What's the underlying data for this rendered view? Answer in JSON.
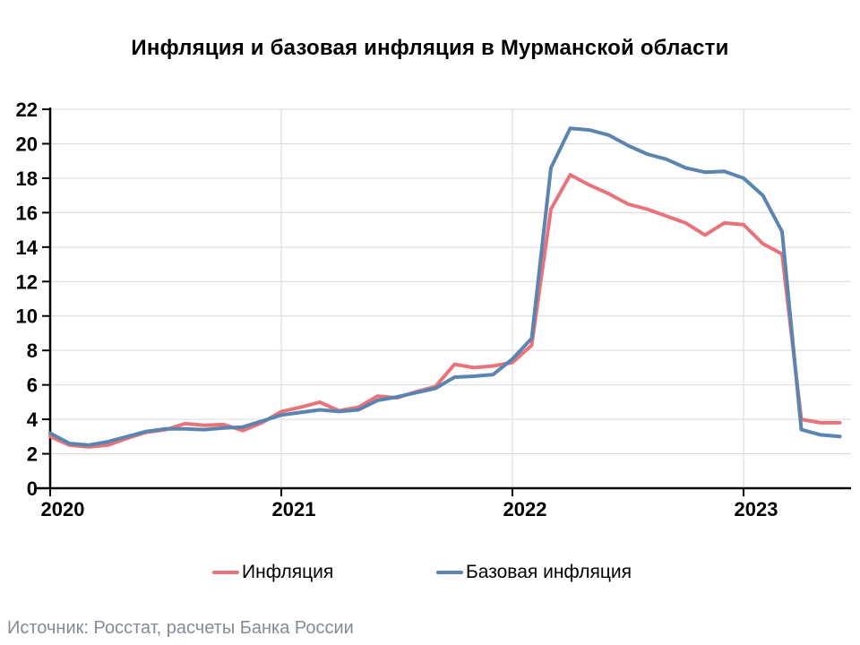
{
  "title": "Инфляция и базовая инфляция в Мурманской области",
  "source": "Источник: Росстат, расчеты Банка России",
  "legend": [
    {
      "label": "Инфляция",
      "color": "#E8737B"
    },
    {
      "label": "Базовая инфляция",
      "color": "#5B84AF"
    }
  ],
  "colors": {
    "inflation_line": "#E8737B",
    "core_inflation_line": "#5B84AF",
    "gridline": "#D9D9D9",
    "axis": "#000000",
    "source_text": "#858b94"
  },
  "chart_data": {
    "type": "line",
    "title": "Инфляция и базовая инфляция в Мурманской области",
    "xlabel": "",
    "ylabel": "",
    "ylim": [
      0,
      22
    ],
    "y_ticks": [
      0,
      2,
      4,
      6,
      8,
      10,
      12,
      14,
      16,
      18,
      20,
      22
    ],
    "x_tick_labels": [
      "2020",
      "2021",
      "2022",
      "2023"
    ],
    "grid": true,
    "legend_position": "bottom",
    "x": [
      "2020-01",
      "2020-02",
      "2020-03",
      "2020-04",
      "2020-05",
      "2020-06",
      "2020-07",
      "2020-08",
      "2020-09",
      "2020-10",
      "2020-11",
      "2020-12",
      "2021-01",
      "2021-02",
      "2021-03",
      "2021-04",
      "2021-05",
      "2021-06",
      "2021-07",
      "2021-08",
      "2021-09",
      "2021-10",
      "2021-11",
      "2021-12",
      "2022-01",
      "2022-02",
      "2022-03",
      "2022-04",
      "2022-05",
      "2022-06",
      "2022-07",
      "2022-08",
      "2022-09",
      "2022-10",
      "2022-11",
      "2022-12",
      "2023-01",
      "2023-02",
      "2023-03",
      "2023-04",
      "2023-05",
      "2023-06"
    ],
    "series": [
      {
        "name": "Инфляция",
        "color": "#E8737B",
        "values": [
          3.0,
          2.5,
          2.4,
          2.5,
          2.9,
          3.25,
          3.4,
          3.75,
          3.65,
          3.7,
          3.35,
          3.8,
          4.45,
          4.7,
          5.0,
          4.5,
          4.7,
          5.35,
          5.25,
          5.6,
          5.9,
          7.2,
          7.0,
          7.1,
          7.3,
          8.3,
          16.2,
          18.2,
          17.6,
          17.1,
          16.5,
          16.2,
          15.8,
          15.4,
          14.7,
          15.4,
          15.3,
          14.2,
          13.6,
          4.0,
          3.8,
          3.8
        ]
      },
      {
        "name": "Базовая инфляция",
        "color": "#5B84AF",
        "values": [
          3.2,
          2.6,
          2.5,
          2.7,
          3.0,
          3.3,
          3.45,
          3.45,
          3.4,
          3.5,
          3.55,
          3.9,
          4.25,
          4.4,
          4.55,
          4.45,
          4.55,
          5.1,
          5.3,
          5.55,
          5.8,
          6.45,
          6.5,
          6.6,
          7.5,
          8.7,
          18.6,
          20.9,
          20.8,
          20.5,
          19.9,
          19.4,
          19.1,
          18.6,
          18.35,
          18.4,
          18.0,
          17.0,
          14.9,
          3.4,
          3.1,
          3.0
        ]
      }
    ]
  }
}
